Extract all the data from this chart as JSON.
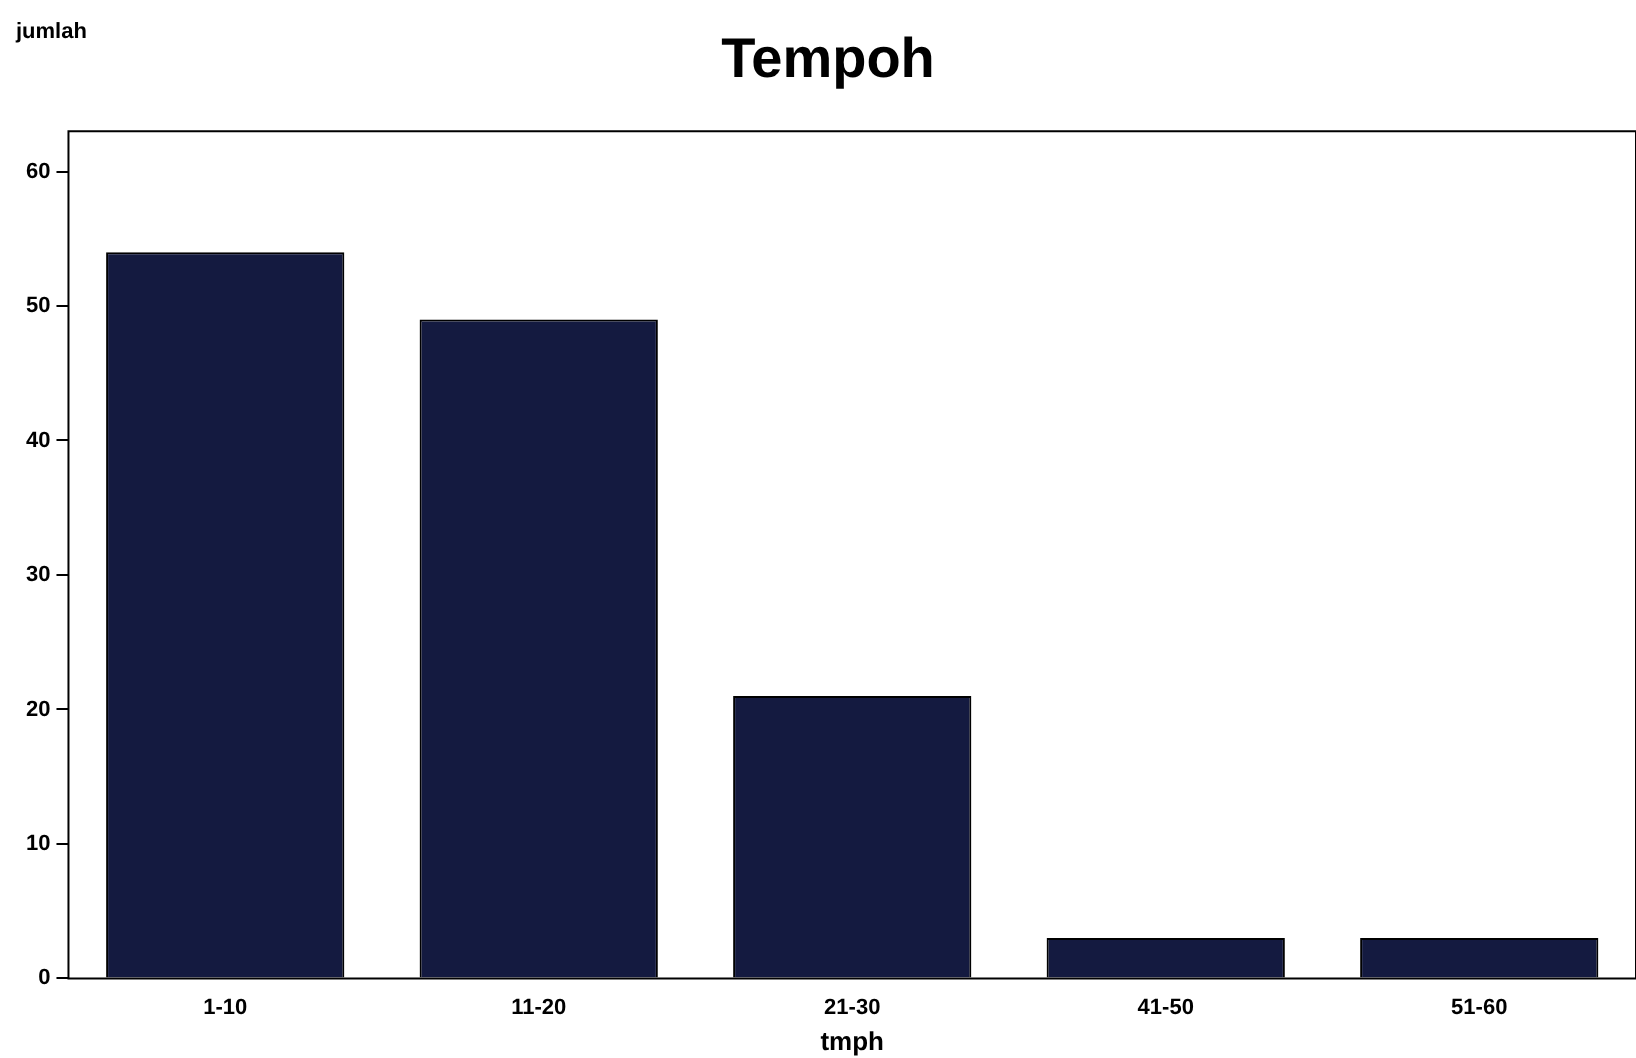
{
  "chart_data": {
    "type": "bar",
    "title": "Tempoh",
    "xlabel": "tmph",
    "ylabel": "jumlah",
    "categories": [
      "1-10",
      "11-20",
      "21-30",
      "41-50",
      "51-60"
    ],
    "values": [
      54,
      49,
      21,
      3,
      3
    ],
    "color": "#141a40",
    "ylim": [
      0,
      63
    ],
    "yticks": [
      0,
      10,
      20,
      30,
      40,
      50,
      60
    ],
    "grid": false,
    "legend": false
  }
}
